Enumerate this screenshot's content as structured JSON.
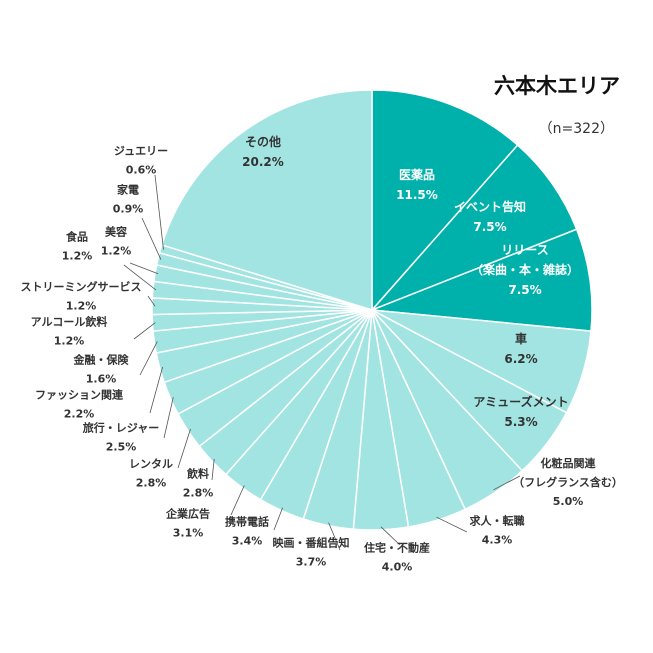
{
  "title": "六本木エリア",
  "subtitle": "（n=322）",
  "colors": {
    "dark": "#00b0aa",
    "light": "#a1e4e2",
    "stroke": "#ffffff",
    "leader": "#555555",
    "text_on_dark": "#ffffff",
    "text_dark": "#333333"
  },
  "chart_data": {
    "type": "pie",
    "title": "六本木エリア",
    "n_label": "（n=322）",
    "start": "12 o'clock, clockwise",
    "slices": [
      {
        "label": "医薬品",
        "value": 11.5,
        "value_label": "11.5%",
        "color": "dark"
      },
      {
        "label": "イベント告知",
        "value": 7.5,
        "value_label": "7.5%",
        "color": "dark"
      },
      {
        "label": "リリース（楽曲・本・雑誌）",
        "label_lines": [
          "リリース",
          "（楽曲・本・雑誌）"
        ],
        "value": 7.5,
        "value_label": "7.5%",
        "color": "dark"
      },
      {
        "label": "車",
        "value": 6.2,
        "value_label": "6.2%",
        "color": "light"
      },
      {
        "label": "アミューズメント",
        "value": 5.3,
        "value_label": "5.3%",
        "color": "light"
      },
      {
        "label": "化粧品関連（フレグランス含む）",
        "label_lines": [
          "化粧品関連",
          "（フレグランス含む）"
        ],
        "value": 5.0,
        "value_label": "5.0%",
        "color": "light"
      },
      {
        "label": "求人・転職",
        "value": 4.3,
        "value_label": "4.3%",
        "color": "light"
      },
      {
        "label": "住宅・不動産",
        "value": 4.0,
        "value_label": "4.0%",
        "color": "light"
      },
      {
        "label": "映画・番組告知",
        "value": 3.7,
        "value_label": "3.7%",
        "color": "light"
      },
      {
        "label": "携帯電話",
        "value": 3.4,
        "value_label": "3.4%",
        "color": "light"
      },
      {
        "label": "企業広告",
        "value": 3.1,
        "value_label": "3.1%",
        "color": "light"
      },
      {
        "label": "飲料",
        "value": 2.8,
        "value_label": "2.8%",
        "color": "light"
      },
      {
        "label": "レンタル",
        "value": 2.8,
        "value_label": "2.8%",
        "color": "light"
      },
      {
        "label": "旅行・レジャー",
        "value": 2.5,
        "value_label": "2.5%",
        "color": "light"
      },
      {
        "label": "ファッション関連",
        "value": 2.2,
        "value_label": "2.2%",
        "color": "light"
      },
      {
        "label": "金融・保険",
        "value": 1.6,
        "value_label": "1.6%",
        "color": "light"
      },
      {
        "label": "アルコール飲料",
        "value": 1.2,
        "value_label": "1.2%",
        "color": "light"
      },
      {
        "label": "ストリーミングサービス",
        "value": 1.2,
        "value_label": "1.2%",
        "color": "light"
      },
      {
        "label": "食品",
        "value": 1.2,
        "value_label": "1.2%",
        "color": "light"
      },
      {
        "label": "美容",
        "value": 1.2,
        "value_label": "1.2%",
        "color": "light"
      },
      {
        "label": "家電",
        "value": 0.9,
        "value_label": "0.9%",
        "color": "light"
      },
      {
        "label": "ジュエリー",
        "value": 0.6,
        "value_label": "0.6%",
        "color": "light"
      },
      {
        "label": "その他",
        "value": 20.2,
        "value_label": "20.2%",
        "color": "light"
      }
    ]
  }
}
